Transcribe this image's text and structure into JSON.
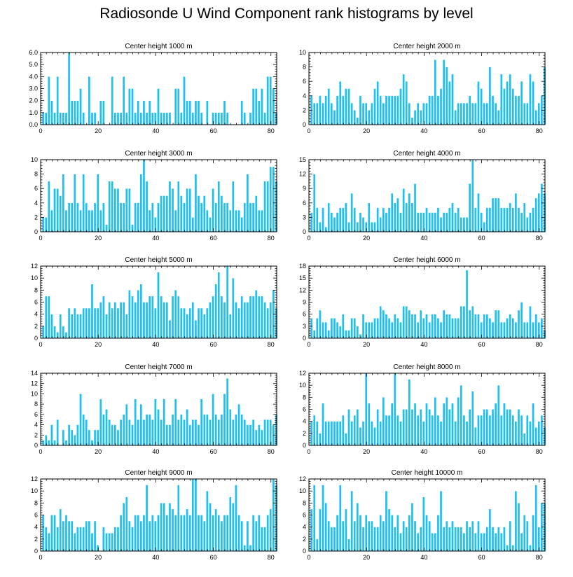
{
  "figure_title": "Radiosonde U Wind Component rank histograms by level",
  "bar_color": "#1ec0f0",
  "chart_data": [
    {
      "type": "bar",
      "title": "Center height 1000 m",
      "xlim": [
        0,
        82
      ],
      "xticks": [
        0,
        20,
        40,
        60,
        80
      ],
      "ylim": [
        0,
        6
      ],
      "yticks": [
        0,
        1,
        2,
        3,
        4,
        5,
        6
      ],
      "ytick_labels": [
        "0.0",
        "1.0",
        "2.0",
        "3.0",
        "4.0",
        "5.0",
        "6.0"
      ],
      "values": [
        1,
        1,
        4,
        2,
        1,
        4,
        1,
        1,
        1,
        6,
        2,
        2,
        2,
        3,
        1,
        0,
        4,
        1,
        1,
        0,
        2,
        2,
        0,
        0,
        4,
        1,
        1,
        1,
        4,
        1,
        3,
        3,
        1,
        2,
        1,
        2,
        1,
        2,
        1,
        1,
        3,
        1,
        1,
        1,
        1,
        0,
        3,
        3,
        1,
        4,
        2,
        2,
        1,
        2,
        2,
        1,
        0,
        2,
        0,
        1,
        1,
        1,
        1,
        2,
        1,
        0,
        0,
        0,
        0,
        2,
        1,
        0,
        1,
        3,
        3,
        2,
        3,
        1,
        4,
        4,
        3,
        1
      ]
    },
    {
      "type": "bar",
      "title": "Center height 2000 m",
      "xlim": [
        0,
        82
      ],
      "xticks": [
        0,
        20,
        40,
        60,
        80
      ],
      "ylim": [
        0,
        10
      ],
      "yticks": [
        0,
        2,
        4,
        6,
        8,
        10
      ],
      "ytick_labels": [
        "0",
        "2",
        "4",
        "6",
        "8",
        "10"
      ],
      "values": [
        4,
        3,
        3,
        4,
        3,
        4,
        5,
        3,
        2,
        4,
        6,
        4,
        5,
        5,
        3,
        2,
        1,
        4,
        3,
        3,
        2,
        3,
        5,
        6,
        4,
        3,
        4,
        4,
        4,
        4,
        4,
        5,
        7,
        6,
        3,
        1,
        2,
        3,
        2,
        3,
        3,
        4,
        4,
        9,
        4,
        5,
        9,
        8,
        6,
        7,
        2,
        3,
        3,
        3,
        3,
        4,
        3,
        3,
        6,
        5,
        3,
        3,
        8,
        4,
        3,
        2,
        7,
        5,
        6,
        7,
        5,
        4,
        4,
        6,
        3,
        3,
        7,
        6,
        2,
        3,
        4,
        8
      ]
    },
    {
      "type": "bar",
      "title": "Center height 3000 m",
      "xlim": [
        0,
        82
      ],
      "xticks": [
        0,
        20,
        40,
        60,
        80
      ],
      "ylim": [
        0,
        10
      ],
      "yticks": [
        0,
        2,
        4,
        6,
        8,
        10
      ],
      "ytick_labels": [
        "0",
        "2",
        "4",
        "6",
        "8",
        "10"
      ],
      "values": [
        2,
        2,
        7,
        3,
        6,
        6,
        5,
        8,
        3,
        4,
        4,
        8,
        4,
        3,
        8,
        4,
        3,
        3,
        4,
        8,
        3,
        4,
        1,
        7,
        7,
        6,
        6,
        4,
        4,
        6,
        6,
        1,
        4,
        4,
        8,
        10,
        7,
        3,
        4,
        2,
        4,
        5,
        5,
        5,
        7,
        6,
        3,
        7,
        5,
        4,
        6,
        6,
        2,
        8,
        5,
        4,
        5,
        3,
        2,
        6,
        4,
        7,
        5,
        4,
        4,
        3,
        7,
        3,
        3,
        2,
        4,
        8,
        4,
        4,
        5,
        3,
        3,
        7,
        7,
        9,
        9,
        7
      ]
    },
    {
      "type": "bar",
      "title": "Center height 4000 m",
      "xlim": [
        0,
        82
      ],
      "xticks": [
        0,
        20,
        40,
        60,
        80
      ],
      "ylim": [
        0,
        15
      ],
      "yticks": [
        0,
        3,
        6,
        9,
        12,
        15
      ],
      "ytick_labels": [
        "0",
        "3",
        "6",
        "9",
        "12",
        "15"
      ],
      "values": [
        4,
        12,
        5,
        2,
        5,
        1,
        6,
        4,
        3,
        4,
        5,
        5,
        6,
        2,
        8,
        5,
        2,
        4,
        3,
        2,
        6,
        2,
        2,
        5,
        3,
        5,
        4,
        5,
        8,
        6,
        7,
        4,
        9,
        6,
        8,
        6,
        10,
        4,
        4,
        4,
        5,
        4,
        4,
        4,
        5,
        3,
        4,
        4,
        5,
        6,
        4,
        5,
        3,
        3,
        3,
        10,
        15,
        5,
        8,
        4,
        2,
        5,
        5,
        7,
        7,
        7,
        5,
        5,
        5,
        6,
        5,
        8,
        5,
        4,
        6,
        3,
        4,
        5,
        7,
        8,
        10,
        8
      ]
    },
    {
      "type": "bar",
      "title": "Center height 5000 m",
      "xlim": [
        0,
        82
      ],
      "xticks": [
        0,
        20,
        40,
        60,
        80
      ],
      "ylim": [
        0,
        12
      ],
      "yticks": [
        0,
        2,
        4,
        6,
        8,
        10,
        12
      ],
      "ytick_labels": [
        "0",
        "2",
        "4",
        "6",
        "8",
        "10",
        "12"
      ],
      "values": [
        2,
        7,
        7,
        4,
        2,
        1,
        4,
        2,
        1,
        5,
        4,
        5,
        4,
        4,
        5,
        5,
        5,
        9,
        5,
        5,
        6,
        7,
        4,
        6,
        5,
        6,
        5,
        6,
        6,
        4,
        8,
        7,
        6,
        8,
        9,
        6,
        6,
        7,
        7,
        5,
        11,
        7,
        6,
        6,
        3,
        7,
        8,
        7,
        5,
        5,
        4,
        5,
        6,
        3,
        5,
        5,
        4,
        5,
        6,
        7,
        9,
        11,
        7,
        6,
        12,
        4,
        10,
        6,
        5,
        7,
        6,
        6,
        7,
        7,
        8,
        7,
        7,
        6,
        5,
        6,
        8,
        5
      ]
    },
    {
      "type": "bar",
      "title": "Center height 6000 m",
      "xlim": [
        0,
        82
      ],
      "xticks": [
        0,
        20,
        40,
        60,
        80
      ],
      "ylim": [
        0,
        18
      ],
      "yticks": [
        0,
        3,
        6,
        9,
        12,
        15,
        18
      ],
      "ytick_labels": [
        "0",
        "3",
        "6",
        "9",
        "12",
        "15",
        "18"
      ],
      "values": [
        5,
        2,
        5,
        7,
        4,
        4,
        2,
        5,
        5,
        4,
        3,
        6,
        2,
        2,
        5,
        5,
        3,
        1,
        6,
        4,
        4,
        4,
        5,
        5,
        8,
        7,
        6,
        5,
        4,
        6,
        5,
        4,
        8,
        8,
        7,
        6,
        6,
        4,
        7,
        5,
        6,
        4,
        6,
        6,
        5,
        4,
        7,
        6,
        6,
        5,
        5,
        5,
        8,
        8,
        17,
        7,
        8,
        6,
        6,
        4,
        6,
        6,
        5,
        4,
        7,
        7,
        4,
        4,
        5,
        6,
        5,
        4,
        7,
        9,
        4,
        4,
        8,
        4,
        6,
        4,
        5,
        2
      ]
    },
    {
      "type": "bar",
      "title": "Center height 7000 m",
      "xlim": [
        0,
        82
      ],
      "xticks": [
        0,
        20,
        40,
        60,
        80
      ],
      "ylim": [
        0,
        14
      ],
      "yticks": [
        0,
        2,
        4,
        6,
        8,
        10,
        12,
        14
      ],
      "ytick_labels": [
        "0",
        "2",
        "4",
        "6",
        "8",
        "10",
        "12",
        "14"
      ],
      "values": [
        1,
        2,
        1,
        4,
        1,
        5,
        0,
        3,
        1,
        4,
        3,
        2,
        4,
        10,
        6,
        5,
        3,
        1,
        3,
        3,
        9,
        6,
        7,
        5,
        4,
        4,
        3,
        5,
        6,
        8,
        5,
        4,
        9,
        5,
        8,
        5,
        6,
        6,
        5,
        9,
        7,
        5,
        9,
        4,
        4,
        6,
        9,
        5,
        6,
        5,
        7,
        4,
        5,
        5,
        4,
        9,
        6,
        6,
        5,
        10,
        6,
        5,
        6,
        10,
        13,
        7,
        5,
        6,
        8,
        6,
        5,
        4,
        4,
        5,
        3,
        4,
        3,
        5,
        5,
        5,
        4,
        6
      ]
    },
    {
      "type": "bar",
      "title": "Center height 8000 m",
      "xlim": [
        0,
        82
      ],
      "xticks": [
        0,
        20,
        40,
        60,
        80
      ],
      "ylim": [
        0,
        12
      ],
      "yticks": [
        0,
        2,
        4,
        6,
        8,
        10,
        12
      ],
      "ytick_labels": [
        "0",
        "2",
        "4",
        "6",
        "8",
        "10",
        "12"
      ],
      "values": [
        4,
        5,
        4,
        2,
        7,
        4,
        4,
        4,
        4,
        4,
        4,
        5,
        2,
        6,
        4,
        5,
        6,
        3,
        4,
        12,
        7,
        4,
        3,
        6,
        4,
        8,
        5,
        5,
        7,
        12,
        5,
        4,
        6,
        6,
        11,
        6,
        7,
        5,
        6,
        4,
        7,
        6,
        5,
        8,
        5,
        4,
        7,
        8,
        6,
        7,
        4,
        8,
        10,
        5,
        4,
        6,
        9,
        3,
        5,
        5,
        6,
        6,
        5,
        6,
        7,
        10,
        5,
        7,
        6,
        6,
        5,
        4,
        6,
        5,
        2,
        5,
        4,
        7,
        3,
        4,
        5,
        3
      ]
    },
    {
      "type": "bar",
      "title": "Center height 9000 m",
      "xlim": [
        0,
        82
      ],
      "xticks": [
        0,
        20,
        40,
        60,
        80
      ],
      "ylim": [
        0,
        12
      ],
      "yticks": [
        0,
        2,
        4,
        6,
        8,
        10,
        12
      ],
      "ytick_labels": [
        "0",
        "2",
        "4",
        "6",
        "8",
        "10",
        "12"
      ],
      "values": [
        6,
        4,
        3,
        6,
        6,
        4,
        7,
        5,
        6,
        5,
        5,
        3,
        4,
        4,
        4,
        5,
        5,
        3,
        5,
        1,
        0,
        4,
        3,
        3,
        3,
        4,
        4,
        6,
        8,
        9,
        5,
        4,
        6,
        6,
        5,
        6,
        11,
        5,
        6,
        5,
        6,
        8,
        8,
        6,
        8,
        7,
        6,
        11,
        6,
        6,
        7,
        6,
        12,
        12,
        6,
        6,
        5,
        10,
        8,
        6,
        7,
        6,
        5,
        6,
        6,
        9,
        8,
        11,
        6,
        5,
        1,
        5,
        1,
        6,
        5,
        6,
        4,
        4,
        6,
        7,
        12,
        11
      ]
    },
    {
      "type": "bar",
      "title": "Center height 10000 m",
      "xlim": [
        0,
        82
      ],
      "xticks": [
        0,
        20,
        40,
        60,
        80
      ],
      "ylim": [
        0,
        12
      ],
      "yticks": [
        0,
        2,
        4,
        6,
        8,
        10,
        12
      ],
      "ytick_labels": [
        "0",
        "2",
        "4",
        "6",
        "8",
        "10",
        "12"
      ],
      "values": [
        7,
        11,
        2,
        7,
        11,
        8,
        5,
        4,
        4,
        6,
        11,
        5,
        7,
        2,
        10,
        5,
        8,
        6,
        4,
        6,
        5,
        5,
        4,
        4,
        6,
        5,
        10,
        7,
        6,
        4,
        6,
        3,
        5,
        4,
        6,
        8,
        5,
        3,
        4,
        9,
        6,
        5,
        3,
        3,
        6,
        10,
        4,
        5,
        4,
        5,
        4,
        4,
        4,
        3,
        5,
        4,
        5,
        3,
        5,
        3,
        3,
        4,
        7,
        4,
        3,
        4,
        3,
        4,
        1,
        5,
        1,
        10,
        8,
        3,
        6,
        5,
        1,
        6,
        11,
        4,
        8,
        8
      ]
    }
  ]
}
